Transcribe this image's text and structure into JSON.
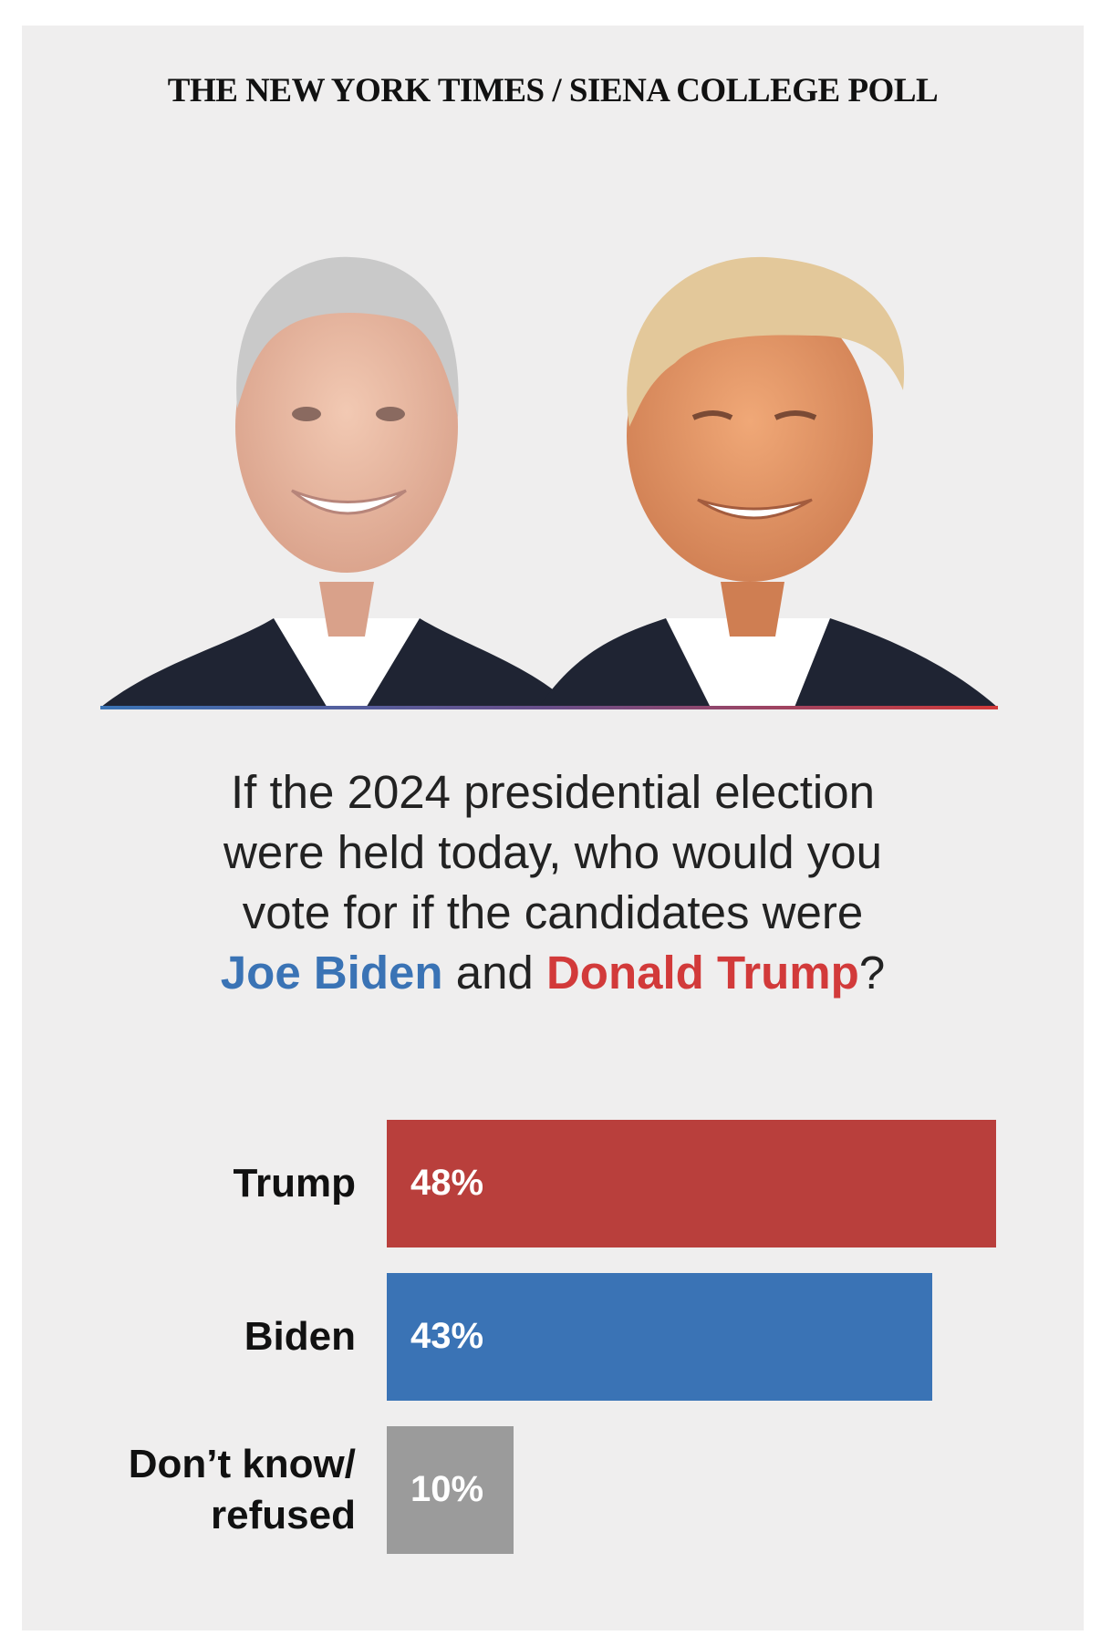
{
  "source": "THE NEW YORK TIMES / SIENA COLLEGE POLL",
  "question": {
    "line1": "If the 2024 presidential election",
    "line2": "were held today, who would you",
    "line3": "vote for if the candidates were",
    "biden": "Joe Biden",
    "and": " and ",
    "trump": "Donald Trump",
    "end": "?"
  },
  "colors": {
    "trump": "#b93f3c",
    "biden": "#3a73b5",
    "undecided": "#9b9b9b",
    "background": "#efeeee"
  },
  "chart_data": {
    "type": "bar",
    "orientation": "horizontal",
    "categories": [
      "Trump",
      "Biden",
      "Don’t know/ refused"
    ],
    "category_lines": [
      [
        "Trump"
      ],
      [
        "Biden"
      ],
      [
        "Don’t know/",
        "refused"
      ]
    ],
    "values": [
      48,
      43,
      10
    ],
    "value_labels": [
      "48%",
      "43%",
      "10%"
    ],
    "xlim": [
      0,
      48
    ]
  }
}
